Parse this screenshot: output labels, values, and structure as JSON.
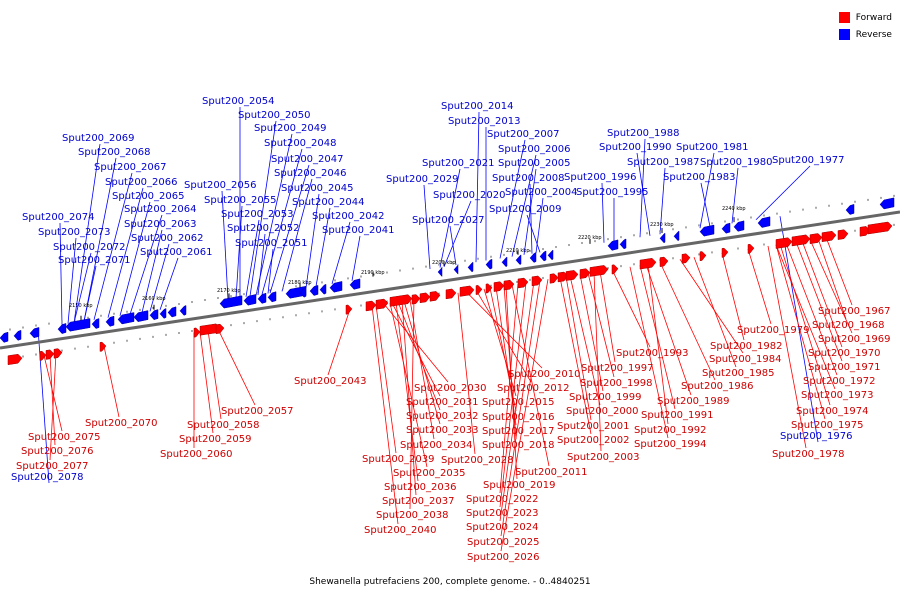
{
  "title": "Shewanella putrefaciens 200, complete genome. - 0..4840251",
  "legend": [
    {
      "label": "Forward",
      "color": "#ff0000"
    },
    {
      "label": "Reverse",
      "color": "#0000ff"
    }
  ],
  "colors": {
    "forward": "#ff0000",
    "reverse": "#0000ff",
    "backbone": "#666666",
    "forward_label": "#cc0000",
    "reverse_label": "#0000cc"
  },
  "ticks": [
    "2150 kbp",
    "2160 kbp",
    "2170 kbp",
    "2180 kbp",
    "2190 kbp",
    "2200 kbp",
    "2210 kbp",
    "2220 kbp",
    "2230 kbp",
    "2240 kbp"
  ],
  "reverse_genes": [
    "Sput200_2054",
    "Sput200_2050",
    "Sput200_2049",
    "Sput200_2048",
    "Sput200_2047",
    "Sput200_2046",
    "Sput200_2045",
    "Sput200_2044",
    "Sput200_2042",
    "Sput200_2041",
    "Sput200_2056",
    "Sput200_2055",
    "Sput200_2053",
    "Sput200_2052",
    "Sput200_2051",
    "Sput200_2069",
    "Sput200_2068",
    "Sput200_2067",
    "Sput200_2066",
    "Sput200_2065",
    "Sput200_2064",
    "Sput200_2063",
    "Sput200_2062",
    "Sput200_2061",
    "Sput200_2074",
    "Sput200_2073",
    "Sput200_2072",
    "Sput200_2071",
    "Sput200_2014",
    "Sput200_2013",
    "Sput200_2007",
    "Sput200_2006",
    "Sput200_2005",
    "Sput200_2021",
    "Sput200_2008",
    "Sput200_2029",
    "Sput200_2020",
    "Sput200_2004",
    "Sput200_2009",
    "Sput200_2027",
    "Sput200_1988",
    "Sput200_1990",
    "Sput200_1981",
    "Sput200_1987",
    "Sput200_1980",
    "Sput200_1977",
    "Sput200_1996",
    "Sput200_1983",
    "Sput200_1995",
    "Sput200_2078",
    "Sput200_1976"
  ],
  "forward_genes": [
    "Sput200_2043",
    "Sput200_2070",
    "Sput200_2057",
    "Sput200_2058",
    "Sput200_2059",
    "Sput200_2060",
    "Sput200_2075",
    "Sput200_2076",
    "Sput200_2077",
    "Sput200_2030",
    "Sput200_2031",
    "Sput200_2032",
    "Sput200_2033",
    "Sput200_2034",
    "Sput200_2039",
    "Sput200_2035",
    "Sput200_2036",
    "Sput200_2037",
    "Sput200_2038",
    "Sput200_2040",
    "Sput200_2010",
    "Sput200_2012",
    "Sput200_2015",
    "Sput200_2016",
    "Sput200_2017",
    "Sput200_2018",
    "Sput200_2028",
    "Sput200_2011",
    "Sput200_2019",
    "Sput200_2022",
    "Sput200_2023",
    "Sput200_2024",
    "Sput200_2025",
    "Sput200_2026",
    "Sput200_1993",
    "Sput200_1997",
    "Sput200_1998",
    "Sput200_1999",
    "Sput200_2000",
    "Sput200_2001",
    "Sput200_2002",
    "Sput200_2003",
    "Sput200_1984",
    "Sput200_1985",
    "Sput200_1986",
    "Sput200_1989",
    "Sput200_1991",
    "Sput200_1992",
    "Sput200_1994",
    "Sput200_1982",
    "Sput200_1979",
    "Sput200_1967",
    "Sput200_1968",
    "Sput200_1969",
    "Sput200_1970",
    "Sput200_1971",
    "Sput200_1972",
    "Sput200_1973",
    "Sput200_1974",
    "Sput200_1975",
    "Sput200_1978"
  ]
}
